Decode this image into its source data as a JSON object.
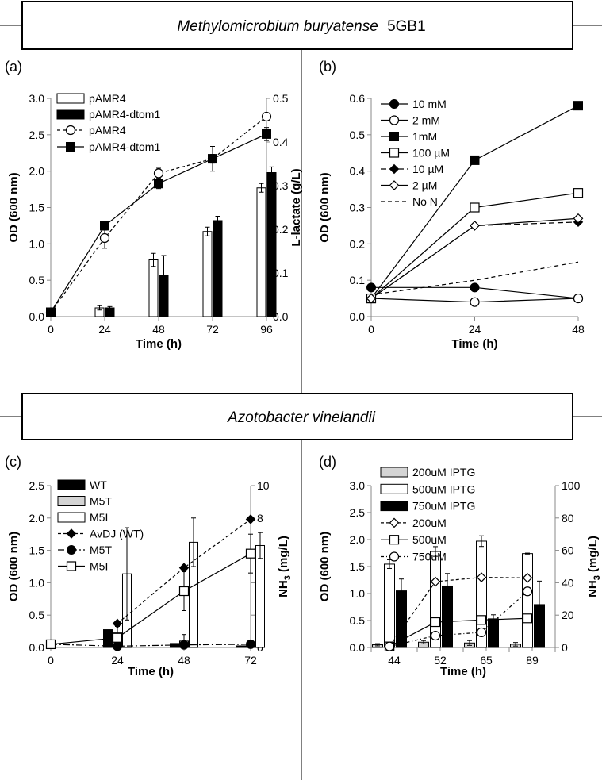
{
  "header_top": {
    "italic": "Methylomicrobium buryatense",
    "plain": "5GB1"
  },
  "header_bottom": {
    "italic": "Azotobacter vinelandii"
  },
  "panels": {
    "a": {
      "label": "(a)",
      "xlabel": "Time (h)",
      "ylabel": "OD (600 nm)",
      "y2label": "L-lactate (g/L)",
      "x_ticks": [
        "0",
        "24",
        "48",
        "72",
        "96"
      ],
      "y_ticks": [
        "0.0",
        "0.5",
        "1.0",
        "1.5",
        "2.0",
        "2.5",
        "3.0"
      ],
      "y2_ticks": [
        "0.0",
        "0.1",
        "0.2",
        "0.3",
        "0.4",
        "0.5"
      ],
      "legend": [
        "pAMR4",
        "pAMR4-dtom1",
        "pAMR4",
        "pAMR4-dtom1"
      ]
    },
    "b": {
      "label": "(b)",
      "xlabel": "Time (h)",
      "ylabel": "OD (600 nm)",
      "x_ticks": [
        "0",
        "24",
        "48"
      ],
      "y_ticks": [
        "0.0",
        "0.1",
        "0.2",
        "0.3",
        "0.4",
        "0.5",
        "0.6"
      ],
      "legend": [
        "10 mM",
        "2 mM",
        "1mM",
        "100 µM",
        "10 µM",
        "2 µM",
        "No N"
      ]
    },
    "c": {
      "label": "(c)",
      "xlabel": "Time (h)",
      "ylabel": "OD (600 nm)",
      "y2label_main": "NH",
      "y2label_sub": "3",
      "y2label_rest": " (mg/L)",
      "x_ticks": [
        "0",
        "24",
        "48",
        "72"
      ],
      "y_ticks": [
        "0.0",
        "0.5",
        "1.0",
        "1.5",
        "2.0",
        "2.5"
      ],
      "y2_ticks": [
        "0",
        "2",
        "4",
        "6",
        "8",
        "10"
      ],
      "legend": [
        "WT",
        "M5T",
        "M5I",
        "AvDJ (WT)",
        "M5T",
        "M5I"
      ]
    },
    "d": {
      "label": "(d)",
      "xlabel": "Time (h)",
      "ylabel": "OD (600 nm)",
      "y2label_main": "NH",
      "y2label_sub": "3",
      "y2label_rest": "  (mg/L)",
      "x_ticks": [
        "44",
        "52",
        "65",
        "89"
      ],
      "y_ticks": [
        "0.0",
        "0.5",
        "1.0",
        "1.5",
        "2.0",
        "2.5",
        "3.0"
      ],
      "y2_ticks": [
        "0",
        "20",
        "40",
        "60",
        "80",
        "100"
      ],
      "legend": [
        "200uM IPTG",
        "500uM IPTG",
        "750uM IPTG",
        "200uM",
        "500uM",
        "750uM"
      ]
    }
  },
  "chart_data": [
    {
      "id": "a",
      "type": "bar+line",
      "title": "Methylomicrobium buryatense 5GB1",
      "xlabel": "Time (h)",
      "ylabel": "OD (600 nm)",
      "y2label": "L-lactate (g/L)",
      "xlim": [
        0,
        96
      ],
      "ylim": [
        0,
        3.0
      ],
      "y2lim": [
        0,
        0.5
      ],
      "x": [
        0,
        24,
        48,
        72,
        96
      ],
      "bars_y2": [
        {
          "name": "pAMR4",
          "values": [
            0,
            0.02,
            0.13,
            0.195,
            0.295
          ],
          "errors": [
            0,
            0.005,
            0.015,
            0.01,
            0.01
          ]
        },
        {
          "name": "pAMR4-dtom1",
          "values": [
            0,
            0.02,
            0.095,
            0.22,
            0.33
          ],
          "errors": [
            0,
            0.003,
            0.045,
            0.01,
            0.013
          ]
        }
      ],
      "lines": [
        {
          "name": "pAMR4",
          "values": [
            0.06,
            1.08,
            1.97,
            2.17,
            2.75
          ],
          "errors": [
            0,
            0.14,
            0.07,
            0.17,
            0
          ]
        },
        {
          "name": "pAMR4-dtom1",
          "values": [
            0.06,
            1.25,
            1.83,
            2.17,
            2.51
          ],
          "errors": [
            0,
            0.06,
            0.07,
            0.06,
            0.09
          ]
        }
      ]
    },
    {
      "id": "b",
      "type": "line",
      "xlabel": "Time (h)",
      "ylabel": "OD (600 nm)",
      "xlim": [
        0,
        48
      ],
      "ylim": [
        0,
        0.6
      ],
      "x": [
        0,
        24,
        48
      ],
      "series": [
        {
          "name": "10 mM",
          "values": [
            0.08,
            0.08,
            0.05
          ]
        },
        {
          "name": "2 mM",
          "values": [
            0.05,
            0.04,
            0.05
          ]
        },
        {
          "name": "1mM",
          "values": [
            0.05,
            0.43,
            0.58
          ]
        },
        {
          "name": "100 µM",
          "values": [
            0.05,
            0.3,
            0.34
          ]
        },
        {
          "name": "10 µM",
          "values": [
            0.05,
            0.25,
            0.26
          ]
        },
        {
          "name": "2 µM",
          "values": [
            0.05,
            0.25,
            0.27
          ]
        },
        {
          "name": "No N",
          "values": [
            0.06,
            0.1,
            0.15
          ]
        }
      ]
    },
    {
      "id": "c",
      "type": "bar+line",
      "title": "Azotobacter vinelandii",
      "xlabel": "Time (h)",
      "ylabel": "OD (600 nm)",
      "y2label": "NH3 (mg/L)",
      "xlim": [
        0,
        72
      ],
      "ylim": [
        0,
        2.5
      ],
      "y2lim": [
        0,
        10
      ],
      "bars_y2": [
        {
          "name": "WT",
          "x": [
            24,
            48,
            72
          ],
          "values": [
            1.1,
            0.25,
            0.1
          ],
          "errors": [
            0,
            0,
            0
          ]
        },
        {
          "name": "M5T",
          "x": [
            24,
            48,
            72
          ],
          "values": [
            0.9,
            0.4,
            0.1
          ],
          "errors": [
            0.4,
            0.4,
            0
          ]
        },
        {
          "name": "M5I",
          "x": [
            24,
            48,
            72
          ],
          "values": [
            4.55,
            6.5,
            6.3
          ],
          "errors": [
            2.85,
            1.5,
            0.8
          ]
        }
      ],
      "lines": [
        {
          "name": "AvDJ (WT)",
          "x": [
            24,
            48,
            72
          ],
          "values": [
            0.37,
            1.23,
            1.98
          ],
          "errors": [
            0,
            0,
            0
          ]
        },
        {
          "name": "M5T",
          "x": [
            0,
            24,
            48,
            72
          ],
          "values": [
            0.05,
            0.02,
            0.04,
            0.05
          ],
          "errors": [
            0,
            0,
            0,
            0
          ]
        },
        {
          "name": "M5I",
          "x": [
            0,
            24,
            48,
            72
          ],
          "values": [
            0.05,
            0.15,
            0.87,
            1.45
          ],
          "errors": [
            0,
            0.07,
            0.3,
            0.3
          ]
        }
      ]
    },
    {
      "id": "d",
      "type": "bar+line",
      "xlabel": "Time (h)",
      "ylabel": "OD (600 nm)",
      "y2label": "NH3 (mg/L)",
      "categories": [
        "44",
        "52",
        "65",
        "89"
      ],
      "ylim": [
        0,
        3.0
      ],
      "y2lim": [
        0,
        100
      ],
      "bars_y2": [
        {
          "name": "200uM IPTG",
          "values": [
            1.7,
            3.3,
            2.8,
            2.0
          ],
          "errors": [
            0.7,
            1.0,
            1.5,
            1.1
          ]
        },
        {
          "name": "500uM IPTG",
          "values": [
            51.5,
            59.3,
            65.7,
            58.0
          ],
          "errors": [
            2.7,
            3.0,
            3.3,
            0.3
          ]
        },
        {
          "name": "750uM IPTG",
          "values": [
            35.0,
            38.0,
            17.7,
            26.5
          ],
          "errors": [
            7.3,
            7.7,
            2.5,
            14.5
          ]
        }
      ],
      "lines": [
        {
          "name": "200uM",
          "values": [
            0.02,
            1.22,
            1.3,
            1.29
          ]
        },
        {
          "name": "500uM",
          "values": [
            0.02,
            0.47,
            0.51,
            0.54
          ]
        },
        {
          "name": "750uM",
          "values": [
            0.02,
            0.22,
            0.28,
            1.04
          ]
        }
      ]
    }
  ]
}
